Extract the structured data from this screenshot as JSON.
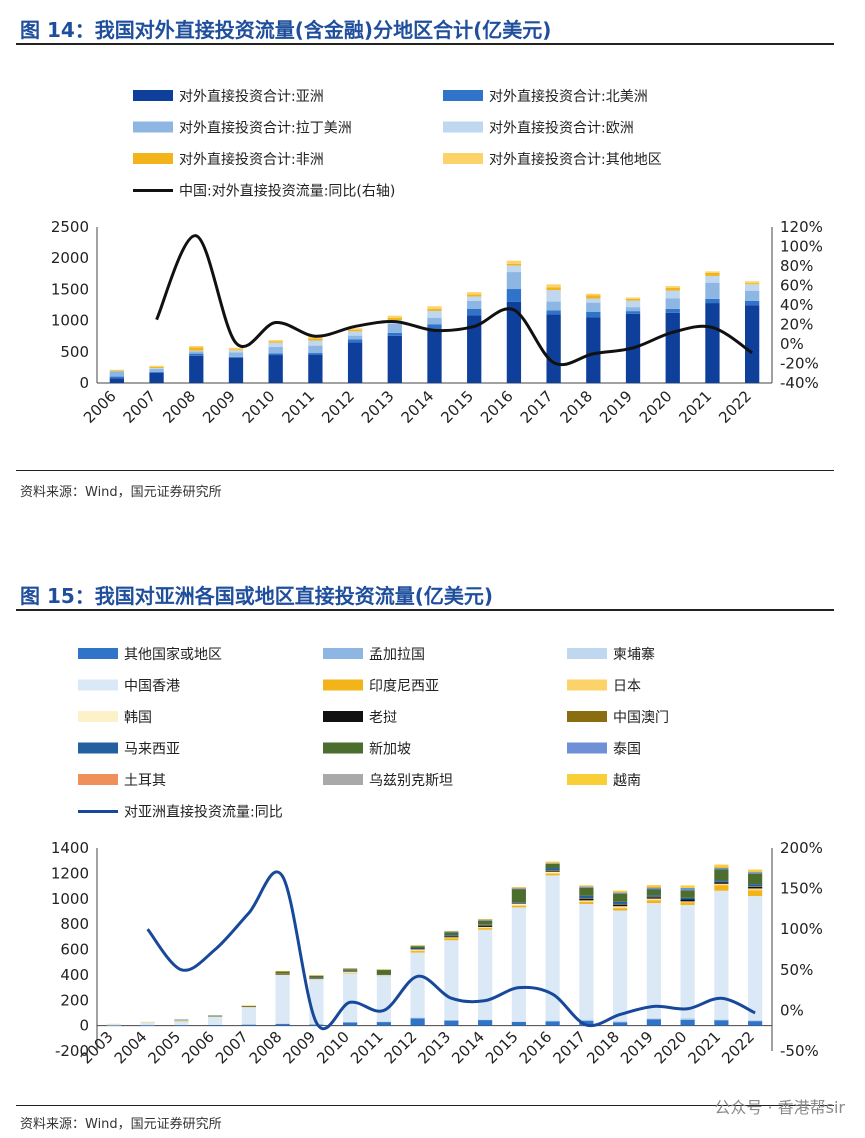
{
  "figure14": {
    "title": "图 14：我国对外直接投资流量(含金融)分地区合计(亿美元)",
    "source": "资料来源：Wind，国元证券研究所",
    "chart_data": {
      "type": "bar",
      "stacked": true,
      "categories": [
        "2006",
        "2007",
        "2008",
        "2009",
        "2010",
        "2011",
        "2012",
        "2013",
        "2014",
        "2015",
        "2016",
        "2017",
        "2018",
        "2019",
        "2020",
        "2021",
        "2022"
      ],
      "series": [
        {
          "name": "对外直接投资合计:亚洲",
          "color": "#0e3f9a",
          "values": [
            77,
            165,
            435,
            404,
            448,
            455,
            648,
            756,
            850,
            1083,
            1303,
            1100,
            1055,
            1108,
            1124,
            1281,
            1243
          ]
        },
        {
          "name": "对外直接投资合计:北美洲",
          "color": "#2f74c8",
          "values": [
            26,
            11,
            36,
            15,
            26,
            25,
            49,
            49,
            92,
            107,
            203,
            65,
            87,
            44,
            63,
            66,
            73
          ]
        },
        {
          "name": "对外直接投资合计:拉丁美洲",
          "color": "#8db6e3",
          "values": [
            85,
            49,
            37,
            73,
            105,
            119,
            62,
            143,
            105,
            126,
            272,
            140,
            146,
            64,
            167,
            261,
            163
          ]
        },
        {
          "name": "对外直接投资合计:欧洲",
          "color": "#c0d7f0",
          "values": [
            6,
            15,
            9,
            33,
            68,
            82,
            70,
            60,
            108,
            71,
            106,
            184,
            65,
            105,
            127,
            108,
            103
          ]
        },
        {
          "name": "对外直接投资合计:非洲",
          "color": "#f2b418",
          "values": [
            5,
            16,
            55,
            14,
            21,
            32,
            25,
            34,
            32,
            30,
            24,
            41,
            54,
            27,
            42,
            50,
            18
          ]
        },
        {
          "name": "对外直接投资合计:其他地区",
          "color": "#fcd36a",
          "values": [
            13,
            19,
            20,
            25,
            19,
            33,
            24,
            36,
            43,
            39,
            52,
            51,
            23,
            22,
            30,
            22,
            30
          ]
        }
      ],
      "line": {
        "name": "中国:对外直接投资流量:同比(右轴)",
        "axis": "right",
        "color": "#111111",
        "values": [
          null,
          25,
          111,
          1,
          22,
          8,
          18,
          23,
          14,
          18,
          35,
          -19,
          -10,
          -4,
          12,
          17,
          -9
        ]
      },
      "ylim": [
        0,
        2500
      ],
      "y_ticks": [
        0,
        500,
        1000,
        1500,
        2000,
        2500
      ],
      "y2lim": [
        -40,
        120
      ],
      "y2_ticks": [
        -40,
        -20,
        0,
        20,
        40,
        60,
        80,
        100,
        120
      ],
      "y2_tick_labels": [
        "-40%",
        "-20%",
        "0%",
        "20%",
        "40%",
        "60%",
        "80%",
        "100%",
        "120%"
      ],
      "legend_position": "top"
    }
  },
  "figure15": {
    "title": "图 15：我国对亚洲各国或地区直接投资流量(亿美元)",
    "source": "资料来源：Wind，国元证券研究所",
    "chart_data": {
      "type": "bar",
      "stacked": true,
      "categories": [
        "2003",
        "2004",
        "2005",
        "2006",
        "2007",
        "2008",
        "2009",
        "2010",
        "2011",
        "2012",
        "2013",
        "2014",
        "2015",
        "2016",
        "2017",
        "2018",
        "2019",
        "2020",
        "2021",
        "2022"
      ],
      "series": [
        {
          "name": "其他国家或地区",
          "color": "#2f74c8",
          "values": [
            2,
            3,
            4,
            5,
            10,
            15,
            10,
            25,
            28,
            58,
            40,
            44,
            30,
            35,
            40,
            26,
            50,
            46,
            42,
            36
          ]
        },
        {
          "name": "孟加拉国",
          "color": "#8db6e3",
          "values": [
            0,
            0,
            0,
            0,
            0,
            0,
            0,
            0,
            0,
            0,
            0,
            0,
            0,
            1,
            1,
            5,
            4,
            5,
            4,
            3
          ]
        },
        {
          "name": "柬埔寨",
          "color": "#c0d7f0",
          "values": [
            0,
            0,
            0,
            0,
            1,
            2,
            2,
            5,
            6,
            6,
            5,
            4,
            4,
            6,
            7,
            8,
            7,
            9,
            5,
            6
          ]
        },
        {
          "name": "中国香港",
          "color": "#dbe9f7",
          "values": [
            11,
            26,
            34,
            69,
            137,
            386,
            356,
            385,
            356,
            512,
            628,
            708,
            898,
            1142,
            911,
            868,
            905,
            891,
            1012,
            976
          ]
        },
        {
          "name": "印度尼西亚",
          "color": "#f2b418",
          "values": [
            0,
            1,
            1,
            1,
            1,
            2,
            2,
            2,
            6,
            14,
            16,
            13,
            15,
            15,
            17,
            19,
            22,
            22,
            44,
            45
          ]
        },
        {
          "name": "日本",
          "color": "#fcd36a",
          "values": [
            1,
            1,
            1,
            1,
            1,
            1,
            1,
            3,
            2,
            2,
            4,
            4,
            2,
            3,
            4,
            5,
            7,
            5,
            8,
            11
          ]
        },
        {
          "name": "韩国",
          "color": "#fdf1c9",
          "values": [
            2,
            1,
            6,
            1,
            1,
            1,
            3,
            7,
            3,
            9,
            3,
            5,
            13,
            11,
            7,
            10,
            6,
            1,
            3,
            4
          ]
        },
        {
          "name": "老挝",
          "color": "#111111",
          "values": [
            0,
            0,
            0,
            0,
            2,
            1,
            2,
            3,
            5,
            8,
            8,
            10,
            5,
            3,
            12,
            12,
            11,
            15,
            13,
            13
          ]
        },
        {
          "name": "中国澳门",
          "color": "#8a6d10",
          "values": [
            0,
            0,
            0,
            0,
            0,
            6,
            5,
            1,
            0,
            0,
            4,
            6,
            0,
            8,
            7,
            6,
            5,
            0,
            3,
            5
          ]
        },
        {
          "name": "马来西亚",
          "color": "#245fa0",
          "values": [
            0,
            0,
            1,
            1,
            0,
            0,
            1,
            2,
            1,
            2,
            6,
            5,
            5,
            18,
            17,
            17,
            11,
            14,
            13,
            16
          ]
        },
        {
          "name": "新加坡",
          "color": "#4b6e2e",
          "values": [
            0,
            0,
            0,
            1,
            4,
            16,
            14,
            11,
            33,
            15,
            20,
            28,
            104,
            32,
            63,
            64,
            48,
            59,
            84,
            83
          ]
        },
        {
          "name": "泰国",
          "color": "#6f8fd6",
          "values": [
            0,
            0,
            0,
            0,
            1,
            0,
            0,
            7,
            2,
            5,
            8,
            8,
            4,
            6,
            11,
            7,
            14,
            19,
            15,
            13
          ]
        },
        {
          "name": "土耳其",
          "color": "#ef8f5a",
          "values": [
            0,
            0,
            0,
            0,
            0,
            0,
            0,
            0,
            0,
            0,
            0,
            1,
            6,
            0,
            1,
            4,
            1,
            0,
            1,
            1
          ]
        },
        {
          "name": "乌兹别克斯坦",
          "color": "#a9a9a9",
          "values": [
            0,
            0,
            0,
            0,
            0,
            0,
            0,
            0,
            1,
            0,
            0,
            2,
            1,
            0,
            0,
            1,
            0,
            0,
            0,
            1
          ]
        },
        {
          "name": "越南",
          "color": "#f9cf37",
          "values": [
            0,
            0,
            0,
            0,
            1,
            1,
            1,
            3,
            2,
            3,
            5,
            3,
            6,
            13,
            8,
            12,
            17,
            19,
            22,
            17
          ]
        }
      ],
      "line": {
        "name": "对亚洲直接投资流量:同比",
        "axis": "right",
        "color": "#17489a",
        "values": [
          null,
          100,
          50,
          75,
          120,
          165,
          -15,
          10,
          0,
          42,
          15,
          12,
          28,
          20,
          -18,
          -5,
          5,
          2,
          15,
          -3
        ]
      },
      "ylim": [
        -200,
        1400
      ],
      "y_ticks": [
        -200,
        0,
        200,
        400,
        600,
        800,
        1000,
        1200,
        1400
      ],
      "y2lim": [
        -50,
        200
      ],
      "y2_ticks": [
        -50,
        0,
        50,
        100,
        150,
        200
      ],
      "y2_tick_labels": [
        "-50%",
        "0%",
        "50%",
        "100%",
        "150%",
        "200%"
      ],
      "legend_position": "top"
    }
  },
  "watermark": "公众号 · 香港帮sir"
}
